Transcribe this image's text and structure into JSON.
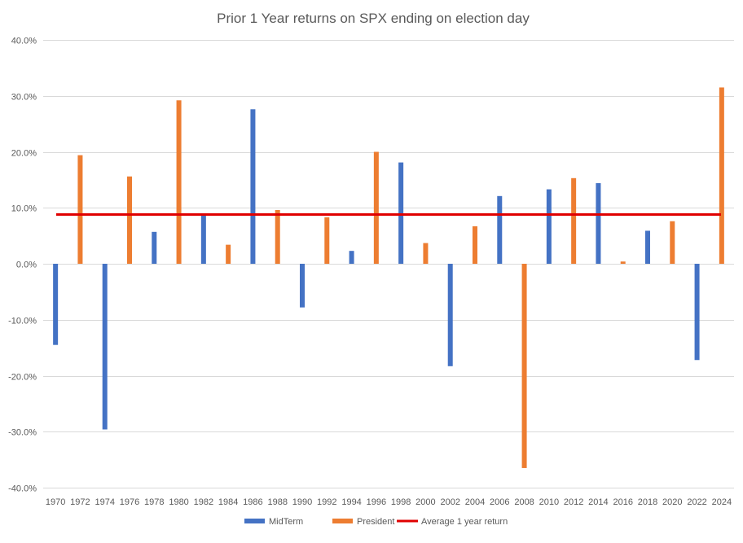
{
  "chart_data": {
    "type": "bar",
    "title": "Prior 1 Year returns on SPX ending on election day",
    "xlabel": "",
    "ylabel": "",
    "ylim": [
      -40,
      40
    ],
    "y_ticks": [
      40,
      30,
      20,
      10,
      0,
      -10,
      -20,
      -30,
      -40
    ],
    "y_tick_labels": [
      "40.0%",
      "30.0%",
      "20.0%",
      "10.0%",
      "0.0%",
      "-10.0%",
      "-20.0%",
      "-30.0%",
      "-40.0%"
    ],
    "categories": [
      "1970",
      "1972",
      "1974",
      "1976",
      "1978",
      "1980",
      "1982",
      "1984",
      "1986",
      "1988",
      "1990",
      "1992",
      "1994",
      "1996",
      "1998",
      "2000",
      "2002",
      "2004",
      "2006",
      "2008",
      "2010",
      "2012",
      "2014",
      "2016",
      "2018",
      "2020",
      "2022",
      "2024"
    ],
    "grid": true,
    "legend_position": "bottom",
    "series": [
      {
        "name": "MidTerm",
        "color": "#4472C4",
        "values": [
          -14.5,
          null,
          -29.6,
          null,
          5.7,
          null,
          8.6,
          null,
          27.6,
          null,
          -7.8,
          null,
          2.3,
          null,
          18.1,
          null,
          -18.3,
          null,
          12.1,
          null,
          13.3,
          null,
          14.4,
          null,
          5.9,
          null,
          -17.2,
          null
        ]
      },
      {
        "name": "President",
        "color": "#ED7D31",
        "values": [
          null,
          19.4,
          null,
          15.6,
          null,
          29.2,
          null,
          3.4,
          null,
          9.6,
          null,
          8.3,
          null,
          20.0,
          null,
          3.7,
          null,
          6.7,
          null,
          -36.5,
          null,
          15.3,
          null,
          0.4,
          null,
          7.6,
          null,
          31.5
        ]
      }
    ],
    "reference_line": {
      "name": "Average 1 year return",
      "color": "#E00000",
      "value": 8.8
    }
  }
}
